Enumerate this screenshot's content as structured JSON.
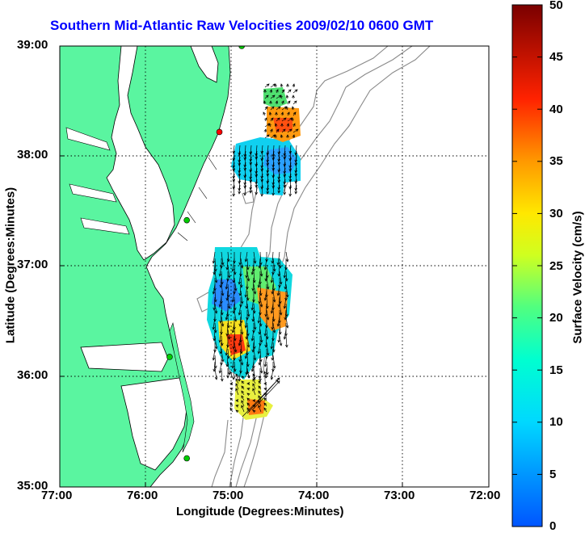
{
  "title": "Southern Mid-Atlantic Raw Velocities 2009/02/10 0600 GMT",
  "xlabel": "Longitude (Degrees:Minutes)",
  "ylabel": "Latitude (Degrees:Minutes)",
  "x_ticks": [
    "77:00",
    "76:00",
    "75:00",
    "74:00",
    "73:00",
    "72:00"
  ],
  "y_ticks": [
    "39:00",
    "38:00",
    "37:00",
    "36:00",
    "35:00"
  ],
  "colorbar": {
    "label": "Surface Velocity (cm/s)",
    "ticks": [
      "0",
      "5",
      "10",
      "15",
      "20",
      "25",
      "30",
      "35",
      "40",
      "45",
      "50"
    ]
  },
  "colors": {
    "land": "#5af5a0",
    "title": "#0000ff",
    "grid": "#000000",
    "isobath": "#8a8a8a"
  },
  "chart_data": {
    "type": "map",
    "x_range": [
      -77,
      -72
    ],
    "y_range": [
      35,
      39
    ],
    "value_range_cm_s": [
      0,
      50
    ],
    "grid": "dotted",
    "stations": [
      {
        "lon": -74.88,
        "lat": 39.0,
        "color": "#00cc00"
      },
      {
        "lon": -75.14,
        "lat": 38.22,
        "color": "#ff0000"
      },
      {
        "lon": -75.52,
        "lat": 37.42,
        "color": "#00cc00"
      },
      {
        "lon": -75.72,
        "lat": 36.18,
        "color": "#00cc00"
      },
      {
        "lon": -75.52,
        "lat": 35.26,
        "color": "#00cc00"
      }
    ]
  }
}
